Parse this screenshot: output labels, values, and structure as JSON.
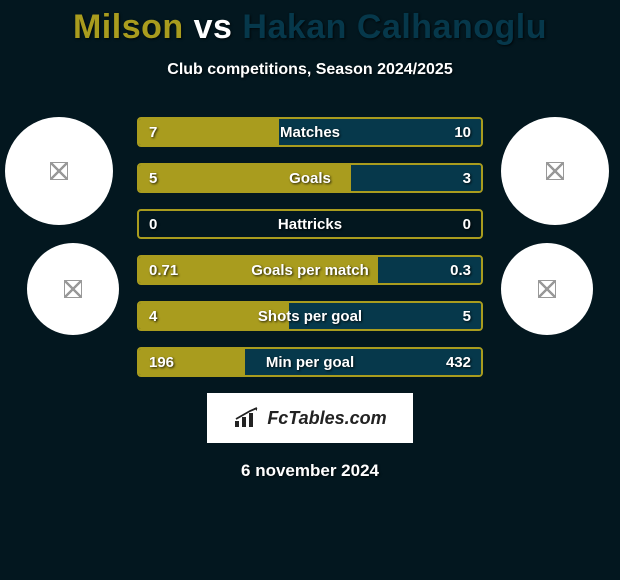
{
  "header": {
    "title_left": "Milson",
    "title_vs": "vs",
    "title_right": "Hakan Calhanoglu",
    "subtitle": "Club competitions, Season 2024/2025",
    "player1_color": "#a99c1e",
    "player2_color": "#06384b"
  },
  "circles": {
    "left": [
      {
        "name": "player1-badge-1"
      },
      {
        "name": "player1-badge-2"
      }
    ],
    "right": [
      {
        "name": "player2-badge-1"
      },
      {
        "name": "player2-badge-2"
      }
    ]
  },
  "bars": {
    "border_color": "#a99c1e",
    "rows": [
      {
        "label": "Matches",
        "left_value": "7",
        "right_value": "10",
        "left_pct": 41,
        "right_pct": 59,
        "left_color": "#a99c1e",
        "right_color": "#06384b"
      },
      {
        "label": "Goals",
        "left_value": "5",
        "right_value": "3",
        "left_pct": 62,
        "right_pct": 38,
        "left_color": "#a99c1e",
        "right_color": "#06384b"
      },
      {
        "label": "Hattricks",
        "left_value": "0",
        "right_value": "0",
        "left_pct": 0,
        "right_pct": 0,
        "left_color": "#a99c1e",
        "right_color": "#06384b"
      },
      {
        "label": "Goals per match",
        "left_value": "0.71",
        "right_value": "0.3",
        "left_pct": 70,
        "right_pct": 30,
        "left_color": "#a99c1e",
        "right_color": "#06384b"
      },
      {
        "label": "Shots per goal",
        "left_value": "4",
        "right_value": "5",
        "left_pct": 44,
        "right_pct": 56,
        "left_color": "#a99c1e",
        "right_color": "#06384b"
      },
      {
        "label": "Min per goal",
        "left_value": "196",
        "right_value": "432",
        "left_pct": 31,
        "right_pct": 69,
        "left_color": "#a99c1e",
        "right_color": "#06384b"
      }
    ]
  },
  "footer": {
    "logo_text": "FcTables.com",
    "date": "6 november 2024"
  },
  "style": {
    "background": "#03171f",
    "text_color": "#ffffff",
    "title_fontsize": 34,
    "subtitle_fontsize": 16,
    "bar_label_fontsize": 15,
    "date_fontsize": 17
  }
}
